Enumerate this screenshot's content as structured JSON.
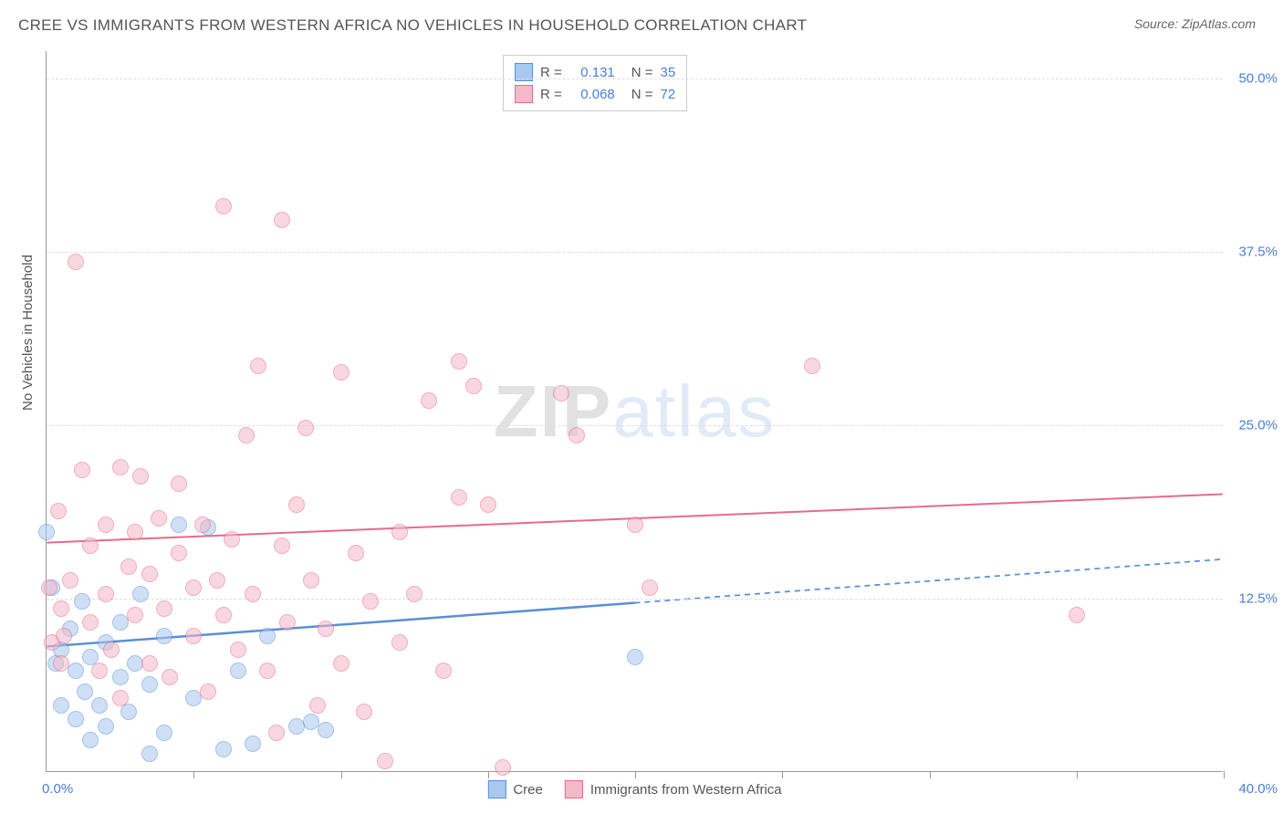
{
  "header": {
    "title": "CREE VS IMMIGRANTS FROM WESTERN AFRICA NO VEHICLES IN HOUSEHOLD CORRELATION CHART",
    "source": "Source: ZipAtlas.com"
  },
  "watermark": {
    "part1": "ZIP",
    "part2": "atlas"
  },
  "chart": {
    "type": "scatter",
    "ylabel": "No Vehicles in Household",
    "xlim": [
      0,
      40
    ],
    "ylim": [
      0,
      52
    ],
    "y_ticks": [
      12.5,
      25.0,
      37.5,
      50.0
    ],
    "y_tick_labels": [
      "12.5%",
      "25.0%",
      "37.5%",
      "50.0%"
    ],
    "x_range_labels": {
      "min": "0.0%",
      "max": "40.0%"
    },
    "x_tick_positions": [
      5,
      10,
      15,
      20,
      25,
      30,
      35,
      40
    ],
    "background_color": "#ffffff",
    "grid_color": "#dddddd",
    "axis_color": "#999999",
    "label_color": "#555555",
    "tick_label_color": "#4a7fd6",
    "point_radius": 9,
    "point_opacity": 0.55,
    "series": [
      {
        "name": "Cree",
        "color_fill": "#a9c8f0",
        "color_stroke": "#5a8fd6",
        "r": "0.131",
        "n": "35",
        "trend": {
          "y_at_xmin": 9.0,
          "y_at_xmax": 15.3,
          "solid_until_x": 20,
          "line_width": 2.5
        },
        "points": [
          [
            0.0,
            18.5
          ],
          [
            0.2,
            14.5
          ],
          [
            0.3,
            9.0
          ],
          [
            0.5,
            10.0
          ],
          [
            0.5,
            6.0
          ],
          [
            0.8,
            11.5
          ],
          [
            1.0,
            8.5
          ],
          [
            1.0,
            5.0
          ],
          [
            1.2,
            13.5
          ],
          [
            1.3,
            7.0
          ],
          [
            1.5,
            9.5
          ],
          [
            1.5,
            3.5
          ],
          [
            1.8,
            6.0
          ],
          [
            2.0,
            10.5
          ],
          [
            2.0,
            4.5
          ],
          [
            2.5,
            8.0
          ],
          [
            2.5,
            12.0
          ],
          [
            2.8,
            5.5
          ],
          [
            3.0,
            9.0
          ],
          [
            3.2,
            14.0
          ],
          [
            3.5,
            2.5
          ],
          [
            3.5,
            7.5
          ],
          [
            4.0,
            11.0
          ],
          [
            4.0,
            4.0
          ],
          [
            4.5,
            19.0
          ],
          [
            5.0,
            6.5
          ],
          [
            5.5,
            18.8
          ],
          [
            6.0,
            2.8
          ],
          [
            6.5,
            8.5
          ],
          [
            7.0,
            3.2
          ],
          [
            7.5,
            11.0
          ],
          [
            8.5,
            4.5
          ],
          [
            9.0,
            4.8
          ],
          [
            9.5,
            4.2
          ],
          [
            20.0,
            9.5
          ]
        ]
      },
      {
        "name": "Immigrants from Western Africa",
        "color_fill": "#f5b8c8",
        "color_stroke": "#e56b8d",
        "r": "0.068",
        "n": "72",
        "trend": {
          "y_at_xmin": 16.5,
          "y_at_xmax": 20.0,
          "solid_until_x": 40,
          "line_width": 2
        },
        "points": [
          [
            0.1,
            14.5
          ],
          [
            0.2,
            10.5
          ],
          [
            0.4,
            20.0
          ],
          [
            0.5,
            13.0
          ],
          [
            0.5,
            9.0
          ],
          [
            0.6,
            11.0
          ],
          [
            0.8,
            15.0
          ],
          [
            1.0,
            38.0
          ],
          [
            1.2,
            23.0
          ],
          [
            1.5,
            17.5
          ],
          [
            1.5,
            12.0
          ],
          [
            1.8,
            8.5
          ],
          [
            2.0,
            19.0
          ],
          [
            2.0,
            14.0
          ],
          [
            2.2,
            10.0
          ],
          [
            2.5,
            23.2
          ],
          [
            2.5,
            6.5
          ],
          [
            2.8,
            16.0
          ],
          [
            3.0,
            18.5
          ],
          [
            3.0,
            12.5
          ],
          [
            3.2,
            22.5
          ],
          [
            3.5,
            9.0
          ],
          [
            3.5,
            15.5
          ],
          [
            3.8,
            19.5
          ],
          [
            4.0,
            13.0
          ],
          [
            4.2,
            8.0
          ],
          [
            4.5,
            22.0
          ],
          [
            4.5,
            17.0
          ],
          [
            5.0,
            14.5
          ],
          [
            5.0,
            11.0
          ],
          [
            5.3,
            19.0
          ],
          [
            5.5,
            7.0
          ],
          [
            5.8,
            15.0
          ],
          [
            6.0,
            42.0
          ],
          [
            6.0,
            12.5
          ],
          [
            6.3,
            18.0
          ],
          [
            6.5,
            10.0
          ],
          [
            6.8,
            25.5
          ],
          [
            7.0,
            14.0
          ],
          [
            7.2,
            30.5
          ],
          [
            7.5,
            8.5
          ],
          [
            7.8,
            4.0
          ],
          [
            8.0,
            41.0
          ],
          [
            8.0,
            17.5
          ],
          [
            8.2,
            12.0
          ],
          [
            8.5,
            20.5
          ],
          [
            8.8,
            26.0
          ],
          [
            9.0,
            15.0
          ],
          [
            9.2,
            6.0
          ],
          [
            9.5,
            11.5
          ],
          [
            10.0,
            30.0
          ],
          [
            10.0,
            9.0
          ],
          [
            10.5,
            17.0
          ],
          [
            11.0,
            13.5
          ],
          [
            11.5,
            2.0
          ],
          [
            12.0,
            18.5
          ],
          [
            12.0,
            10.5
          ],
          [
            12.5,
            14.0
          ],
          [
            13.0,
            28.0
          ],
          [
            13.5,
            8.5
          ],
          [
            14.0,
            30.8
          ],
          [
            14.0,
            21.0
          ],
          [
            14.5,
            29.0
          ],
          [
            15.0,
            20.5
          ],
          [
            15.5,
            1.5
          ],
          [
            17.5,
            28.5
          ],
          [
            18.0,
            25.5
          ],
          [
            20.0,
            19.0
          ],
          [
            20.5,
            14.5
          ],
          [
            26.0,
            30.5
          ],
          [
            35.0,
            12.5
          ],
          [
            10.8,
            5.5
          ]
        ]
      }
    ],
    "r_legend": {
      "r_label": "R  =",
      "n_label": "N  ="
    },
    "bottom_legend": {
      "items": [
        "Cree",
        "Immigrants from Western Africa"
      ]
    }
  }
}
